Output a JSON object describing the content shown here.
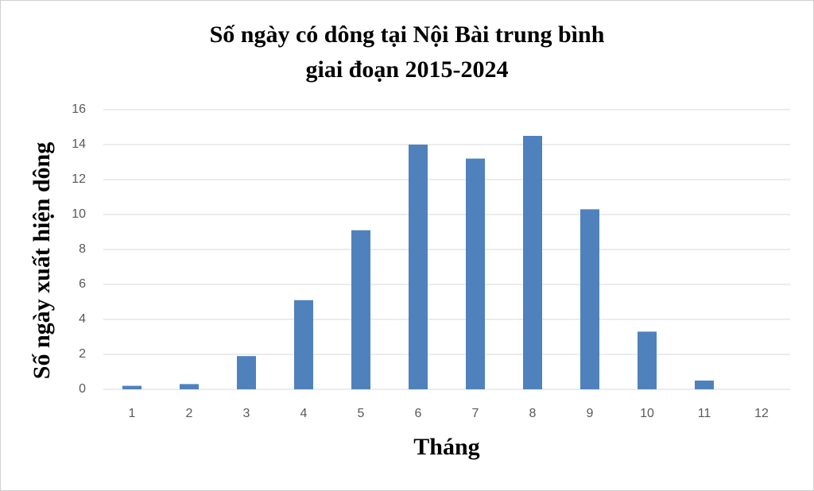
{
  "chart_data": {
    "type": "bar",
    "title": [
      "Số ngày có dông tại Nội Bài trung bình",
      "giai đoạn 2015-2024"
    ],
    "x_label": "Tháng",
    "y_label": "Số ngày xuất hiện dông",
    "categories": [
      "1",
      "2",
      "3",
      "4",
      "5",
      "6",
      "7",
      "8",
      "9",
      "10",
      "11",
      "12"
    ],
    "values": [
      0.2,
      0.3,
      1.9,
      5.1,
      9.1,
      14.0,
      13.2,
      14.5,
      10.3,
      3.3,
      0.5,
      0
    ],
    "color": "#4f81bd",
    "ylim": [
      0,
      16
    ],
    "yticks": [
      0,
      2,
      4,
      6,
      8,
      10,
      12,
      14,
      16
    ],
    "grid": true
  }
}
